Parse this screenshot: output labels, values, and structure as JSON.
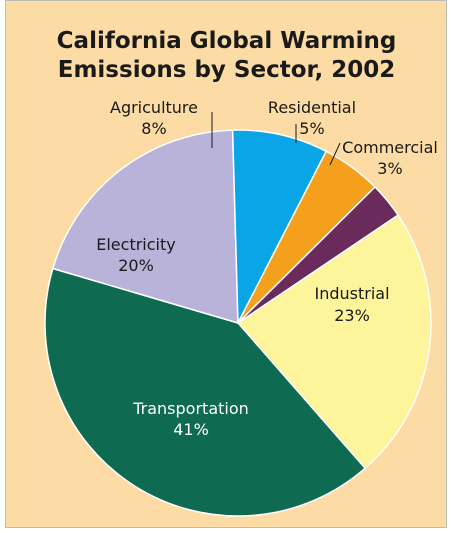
{
  "chart_data": {
    "type": "pie",
    "title": [
      "California Global Warming",
      "Emissions by Sector, 2002"
    ],
    "start_angle_deg": -34,
    "direction": "clockwise",
    "slices": [
      {
        "label": "Industrial",
        "value": 23,
        "pct": "23%",
        "color": "#fdf49b",
        "text_color": "#1a1a1a"
      },
      {
        "label": "Transportation",
        "value": 41,
        "pct": "41%",
        "color": "#0f6a52",
        "text_color": "#ffffff"
      },
      {
        "label": "Electricity",
        "value": 20,
        "pct": "20%",
        "color": "#b9b2d9",
        "text_color": "#1a1a1a"
      },
      {
        "label": "Agriculture",
        "value": 8,
        "pct": "8%",
        "color": "#0aa5e6",
        "text_color": "#1a1a1a"
      },
      {
        "label": "Residential",
        "value": 5,
        "pct": "5%",
        "color": "#f4a01c",
        "text_color": "#1a1a1a"
      },
      {
        "label": "Commercial",
        "value": 3,
        "pct": "3%",
        "color": "#6a2a5c",
        "text_color": "#1a1a1a"
      }
    ],
    "slice_edge_color": "#ffffff"
  }
}
